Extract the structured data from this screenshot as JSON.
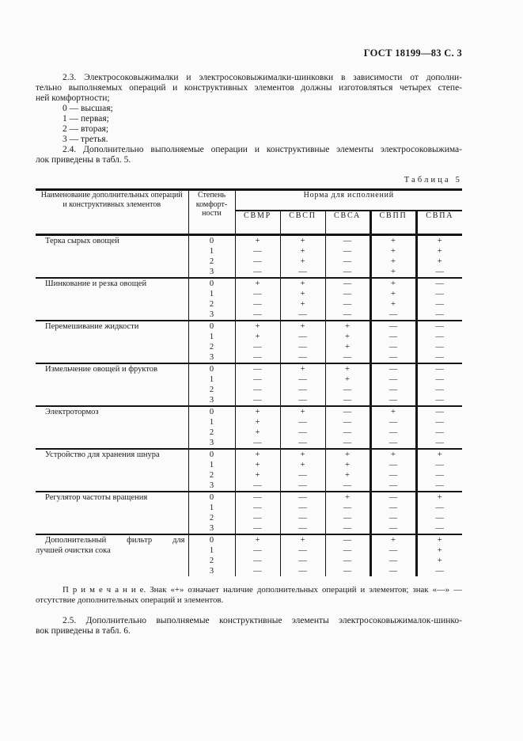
{
  "doc": {
    "header": "ГОСТ 18199—83 С. 3",
    "para_2_3": {
      "lines": [
        "2.3. Электросоковыжималки и электросоковыжималки-шинковки в зависимости от дополни-",
        "тельно выполняемых операций и конструктивных элементов должны изготовляться четырех степе-",
        "ней комфортности;"
      ]
    },
    "comfort_list": [
      "0 — высшая;",
      "1 — первая;",
      "2 — вторая;",
      "3 — третья."
    ],
    "para_2_4": {
      "lines": [
        "2.4. Дополнительно выполняемые операции и конструктивные элементы электросоковыжима-",
        "лок приведены в табл. 5."
      ]
    },
    "table_caption": "Таблица 5",
    "note": {
      "lines": [
        "П р и м е ч а н и е.  Знак  «+»  означает  наличие  дополнительных  операций  и  элементов;  знак  «—»  —",
        "отсутствие дополнительных операций и элементов."
      ]
    },
    "para_2_5": {
      "lines": [
        "2.5. Дополнительно выполняемые конструктивные элементы электросоковыжималок-шинко-",
        "вок приведены в табл. 6."
      ]
    }
  },
  "table": {
    "col1_header_lines": [
      "Наименование дополнительных операций",
      "и конструктивных элементов"
    ],
    "col2_header_lines": [
      "Степень",
      "комфорт-",
      "ности"
    ],
    "group_header": "Норма для исполнений",
    "columns": [
      "СВМР",
      "СВСП",
      "СВСА",
      "СВПП",
      "СВПА"
    ],
    "levels": [
      "0",
      "1",
      "2",
      "3"
    ],
    "rows": [
      {
        "name_lines": [
          "Терка сырых овощей"
        ],
        "values": [
          [
            "+",
            "+",
            "—",
            "+",
            "+"
          ],
          [
            "—",
            "+",
            "—",
            "+",
            "+"
          ],
          [
            "—",
            "+",
            "—",
            "+",
            "+"
          ],
          [
            "—",
            "—",
            "—",
            "+",
            "—"
          ]
        ]
      },
      {
        "name_lines": [
          "Шинкование и резка овощей"
        ],
        "values": [
          [
            "+",
            "+",
            "—",
            "+",
            "—"
          ],
          [
            "—",
            "+",
            "—",
            "+",
            "—"
          ],
          [
            "—",
            "+",
            "—",
            "+",
            "—"
          ],
          [
            "—",
            "—",
            "—",
            "—",
            "—"
          ]
        ]
      },
      {
        "name_lines": [
          "Перемешивание жидкости"
        ],
        "values": [
          [
            "+",
            "+",
            "+",
            "—",
            "—"
          ],
          [
            "+",
            "—",
            "+",
            "—",
            "—"
          ],
          [
            "—",
            "—",
            "+",
            "—",
            "—"
          ],
          [
            "—",
            "—",
            "—",
            "—",
            "—"
          ]
        ]
      },
      {
        "name_lines": [
          "Измельчение овощей и фруктов"
        ],
        "values": [
          [
            "—",
            "+",
            "+",
            "—",
            "—"
          ],
          [
            "—",
            "—",
            "+",
            "—",
            "—"
          ],
          [
            "—",
            "—",
            "—",
            "—",
            "—"
          ],
          [
            "—",
            "—",
            "—",
            "—",
            "—"
          ]
        ]
      },
      {
        "name_lines": [
          "Электротормоз"
        ],
        "values": [
          [
            "+",
            "+",
            "—",
            "+",
            "—"
          ],
          [
            "+",
            "—",
            "—",
            "—",
            "—"
          ],
          [
            "+",
            "—",
            "—",
            "—",
            "—"
          ],
          [
            "—",
            "—",
            "—",
            "—",
            "—"
          ]
        ]
      },
      {
        "name_lines": [
          "Устройство для хранения шнура"
        ],
        "values": [
          [
            "+",
            "+",
            "+",
            "+",
            "+"
          ],
          [
            "+",
            "+",
            "+",
            "—",
            "—"
          ],
          [
            "+",
            "—",
            "+",
            "—",
            "—"
          ],
          [
            "—",
            "—",
            "—",
            "—",
            "—"
          ]
        ]
      },
      {
        "name_lines": [
          "Регулятор частоты вращения"
        ],
        "values": [
          [
            "—",
            "—",
            "+",
            "—",
            "+"
          ],
          [
            "—",
            "—",
            "—",
            "—",
            "—"
          ],
          [
            "—",
            "—",
            "—",
            "—",
            "—"
          ],
          [
            "—",
            "—",
            "—",
            "—",
            "—"
          ]
        ]
      },
      {
        "name_lines": [
          "Дополнительный фильтр для",
          "лучшей очистки сока"
        ],
        "values": [
          [
            "+",
            "+",
            "—",
            "+",
            "+"
          ],
          [
            "—",
            "—",
            "—",
            "—",
            "+"
          ],
          [
            "—",
            "—",
            "—",
            "—",
            "+"
          ],
          [
            "—",
            "—",
            "—",
            "—",
            "—"
          ]
        ]
      }
    ]
  }
}
